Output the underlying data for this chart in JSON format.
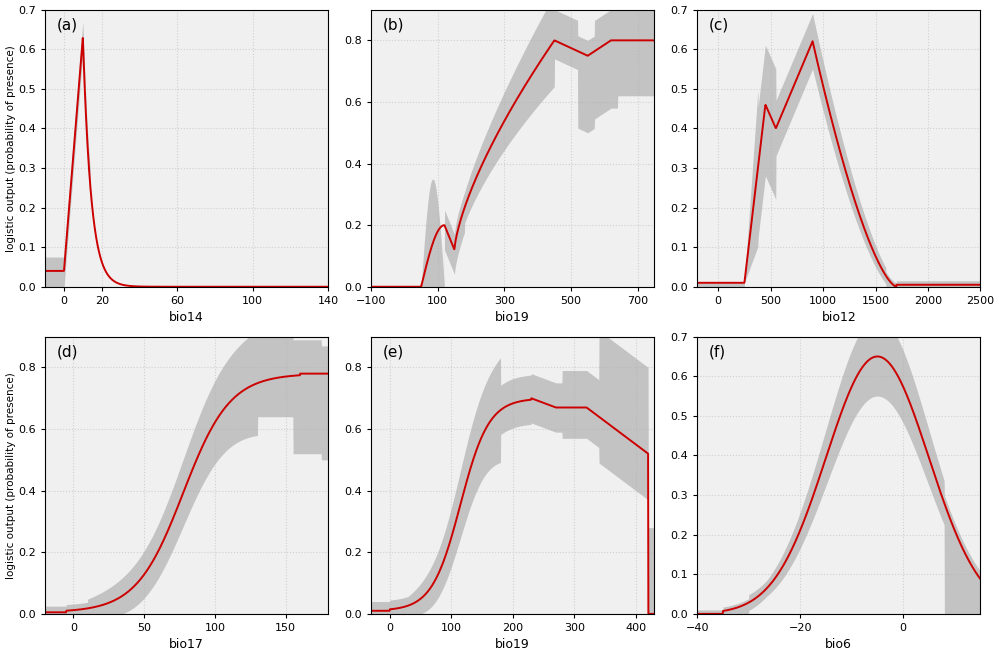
{
  "panels": [
    {
      "label": "(a)",
      "xlabel": "bio14",
      "xlim": [
        -10,
        140
      ],
      "xticks": [
        0,
        20,
        60,
        100,
        140
      ],
      "ylim": [
        0.0,
        0.7
      ],
      "yticks": [
        0.0,
        0.1,
        0.2,
        0.3,
        0.4,
        0.5,
        0.6,
        0.7
      ],
      "curve_type": "peak_early"
    },
    {
      "label": "(b)",
      "xlabel": "bio19",
      "xlim": [
        -100,
        750
      ],
      "xticks": [
        -100,
        100,
        300,
        500,
        700
      ],
      "ylim": [
        0.0,
        0.9
      ],
      "yticks": [
        0.0,
        0.2,
        0.4,
        0.6,
        0.8
      ],
      "curve_type": "sigmoid_plateau_b"
    },
    {
      "label": "(c)",
      "xlabel": "bio12",
      "xlim": [
        -200,
        2500
      ],
      "xticks": [
        0,
        500,
        1000,
        1500,
        2000,
        2500
      ],
      "ylim": [
        0.0,
        0.7
      ],
      "yticks": [
        0.0,
        0.1,
        0.2,
        0.3,
        0.4,
        0.5,
        0.6,
        0.7
      ],
      "curve_type": "double_peak"
    },
    {
      "label": "(d)",
      "xlabel": "bio17",
      "xlim": [
        -20,
        180
      ],
      "xticks": [
        0,
        50,
        100,
        150
      ],
      "ylim": [
        0.0,
        0.9
      ],
      "yticks": [
        0.0,
        0.2,
        0.4,
        0.6,
        0.8
      ],
      "curve_type": "sigmoid_plateau_d"
    },
    {
      "label": "(e)",
      "xlabel": "bio19",
      "xlim": [
        -30,
        430
      ],
      "xticks": [
        0,
        100,
        200,
        300,
        400
      ],
      "ylim": [
        0.0,
        0.9
      ],
      "yticks": [
        0.0,
        0.2,
        0.4,
        0.6,
        0.8
      ],
      "curve_type": "hump_e"
    },
    {
      "label": "(f)",
      "xlabel": "bio6",
      "xlim": [
        -40,
        15
      ],
      "xticks": [
        -40,
        -20,
        0
      ],
      "ylim": [
        0.0,
        0.7
      ],
      "yticks": [
        0.0,
        0.1,
        0.2,
        0.3,
        0.4,
        0.5,
        0.6,
        0.7
      ],
      "curve_type": "sigmoid_f"
    }
  ],
  "line_color": "#cc0000",
  "fill_color": "#b0b0b0",
  "fill_alpha": 0.7,
  "bg_color": "#f0f0f0",
  "grid_color": "#d0d0d0",
  "ylabel": "logistic output (probability of presence)"
}
